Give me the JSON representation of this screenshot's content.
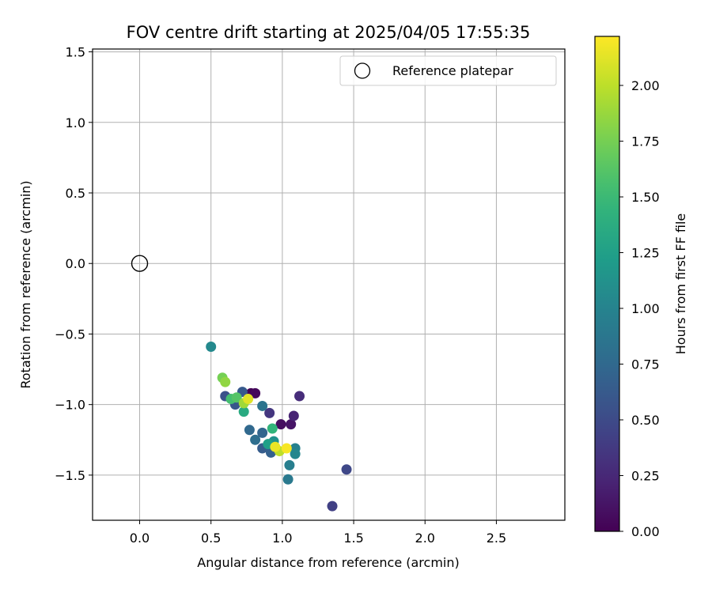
{
  "chart_data": {
    "type": "scatter",
    "title": "FOV centre drift starting at 2025/04/05 17:55:35",
    "xlabel": "Angular distance from reference (arcmin)",
    "ylabel": "Rotation from reference (arcmin)",
    "xlim": [
      -0.33,
      2.98
    ],
    "ylim": [
      -1.82,
      1.52
    ],
    "x_ticks": [
      0.0,
      0.5,
      1.0,
      1.5,
      2.0,
      2.5
    ],
    "x_tick_labels": [
      "0.0",
      "0.5",
      "1.0",
      "1.5",
      "2.0",
      "2.5"
    ],
    "y_ticks": [
      1.5,
      1.0,
      0.5,
      0.0,
      -0.5,
      -1.0,
      -1.5
    ],
    "y_tick_labels": [
      "1.5",
      "1.0",
      "0.5",
      "0.0",
      "−0.5",
      "−1.0",
      "−1.5"
    ],
    "grid": true,
    "legend": {
      "position": "top-right",
      "entries": [
        "Reference platepar"
      ]
    },
    "reference": {
      "name": "Reference platepar",
      "x": 0.0,
      "y": 0.0,
      "marker": "open-circle",
      "color": "#000000"
    },
    "colorbar": {
      "label": "Hours from first FF file",
      "min": 0.0,
      "max": 2.22,
      "colormap": "viridis",
      "ticks": [
        0.0,
        0.25,
        0.5,
        0.75,
        1.0,
        1.25,
        1.5,
        1.75,
        2.0
      ],
      "tick_labels": [
        "0.00",
        "0.25",
        "0.50",
        "0.75",
        "1.00",
        "1.25",
        "1.50",
        "1.75",
        "2.00"
      ]
    },
    "series": [
      {
        "marker": "filled-circle",
        "points": [
          {
            "x": 0.78,
            "y": -0.92,
            "c": 0.0
          },
          {
            "x": 0.81,
            "y": -0.92,
            "c": 0.05
          },
          {
            "x": 0.99,
            "y": -1.14,
            "c": 0.08
          },
          {
            "x": 1.06,
            "y": -1.14,
            "c": 0.12
          },
          {
            "x": 1.08,
            "y": -1.08,
            "c": 0.22
          },
          {
            "x": 1.12,
            "y": -0.94,
            "c": 0.28
          },
          {
            "x": 0.91,
            "y": -1.06,
            "c": 0.35
          },
          {
            "x": 1.35,
            "y": -1.72,
            "c": 0.42
          },
          {
            "x": 1.45,
            "y": -1.46,
            "c": 0.48
          },
          {
            "x": 0.6,
            "y": -0.94,
            "c": 0.55
          },
          {
            "x": 0.67,
            "y": -1.0,
            "c": 0.6
          },
          {
            "x": 0.72,
            "y": -0.91,
            "c": 0.62
          },
          {
            "x": 0.86,
            "y": -1.31,
            "c": 0.65
          },
          {
            "x": 0.92,
            "y": -1.34,
            "c": 0.68
          },
          {
            "x": 0.86,
            "y": -1.2,
            "c": 0.72
          },
          {
            "x": 0.77,
            "y": -1.18,
            "c": 0.75
          },
          {
            "x": 0.81,
            "y": -1.25,
            "c": 0.8
          },
          {
            "x": 0.86,
            "y": -1.01,
            "c": 0.85
          },
          {
            "x": 1.04,
            "y": -1.53,
            "c": 0.9
          },
          {
            "x": 1.05,
            "y": -1.43,
            "c": 0.95
          },
          {
            "x": 1.09,
            "y": -1.31,
            "c": 0.98
          },
          {
            "x": 1.09,
            "y": -1.35,
            "c": 1.02
          },
          {
            "x": 0.5,
            "y": -0.59,
            "c": 1.05
          },
          {
            "x": 0.94,
            "y": -1.26,
            "c": 1.12
          },
          {
            "x": 0.9,
            "y": -1.28,
            "c": 1.25
          },
          {
            "x": 0.73,
            "y": -1.05,
            "c": 1.35
          },
          {
            "x": 0.93,
            "y": -1.17,
            "c": 1.45
          },
          {
            "x": 0.64,
            "y": -0.96,
            "c": 1.55
          },
          {
            "x": 0.68,
            "y": -0.95,
            "c": 1.62
          },
          {
            "x": 0.58,
            "y": -0.81,
            "c": 1.75
          },
          {
            "x": 0.6,
            "y": -0.84,
            "c": 1.85
          },
          {
            "x": 0.73,
            "y": -0.99,
            "c": 1.9
          },
          {
            "x": 0.98,
            "y": -1.33,
            "c": 2.0
          },
          {
            "x": 0.76,
            "y": -0.96,
            "c": 2.12
          },
          {
            "x": 0.95,
            "y": -1.3,
            "c": 2.16
          },
          {
            "x": 1.03,
            "y": -1.31,
            "c": 2.2
          }
        ]
      }
    ]
  }
}
